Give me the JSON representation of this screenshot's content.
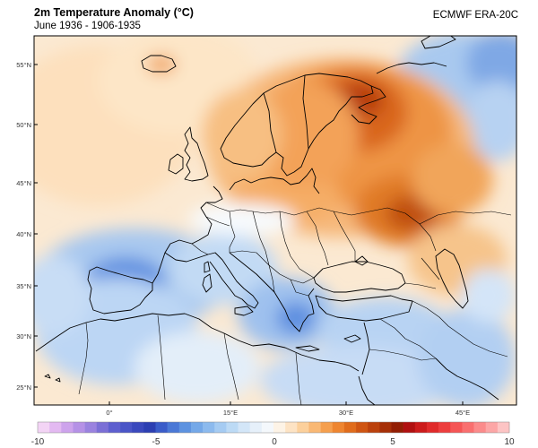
{
  "header": {
    "title": "2m Temperature Anomaly (°C)",
    "subtitle": "June 1936 - 1906-1935",
    "source": "ECMWF ERA-20C"
  },
  "map": {
    "lat_labels": [
      "55°N",
      "50°N",
      "45°N",
      "40°N",
      "35°N",
      "30°N",
      "25°N"
    ],
    "lon_labels": [
      "0°",
      "15°E",
      "30°E",
      "45°E"
    ]
  },
  "colorbar": {
    "labels": [
      "-10",
      "-5",
      "0",
      "5",
      "10"
    ],
    "colors": [
      "#f3d4f5",
      "#e3b9f1",
      "#cda3ec",
      "#b591e6",
      "#9a82df",
      "#7b6fd6",
      "#5e5fcf",
      "#4a55c7",
      "#3a49bd",
      "#2c3fb2",
      "#3a5cc9",
      "#4a78d6",
      "#5d92e0",
      "#74a8e8",
      "#8cbaee",
      "#a5cbf2",
      "#bcdaf5",
      "#d3e6f8",
      "#e6f0fa",
      "#f4f8fc",
      "#fdf3e6",
      "#fde3c4",
      "#fcd09c",
      "#f9b874",
      "#f59f4e",
      "#ee8530",
      "#e06c1c",
      "#cf5512",
      "#bb410c",
      "#a62f07",
      "#931e04",
      "#b01010",
      "#cc1b1b",
      "#e02a2a",
      "#ed3d3d",
      "#f55555",
      "#f96f6f",
      "#fb8b8b",
      "#fca6a6",
      "#fdc4c4"
    ]
  }
}
